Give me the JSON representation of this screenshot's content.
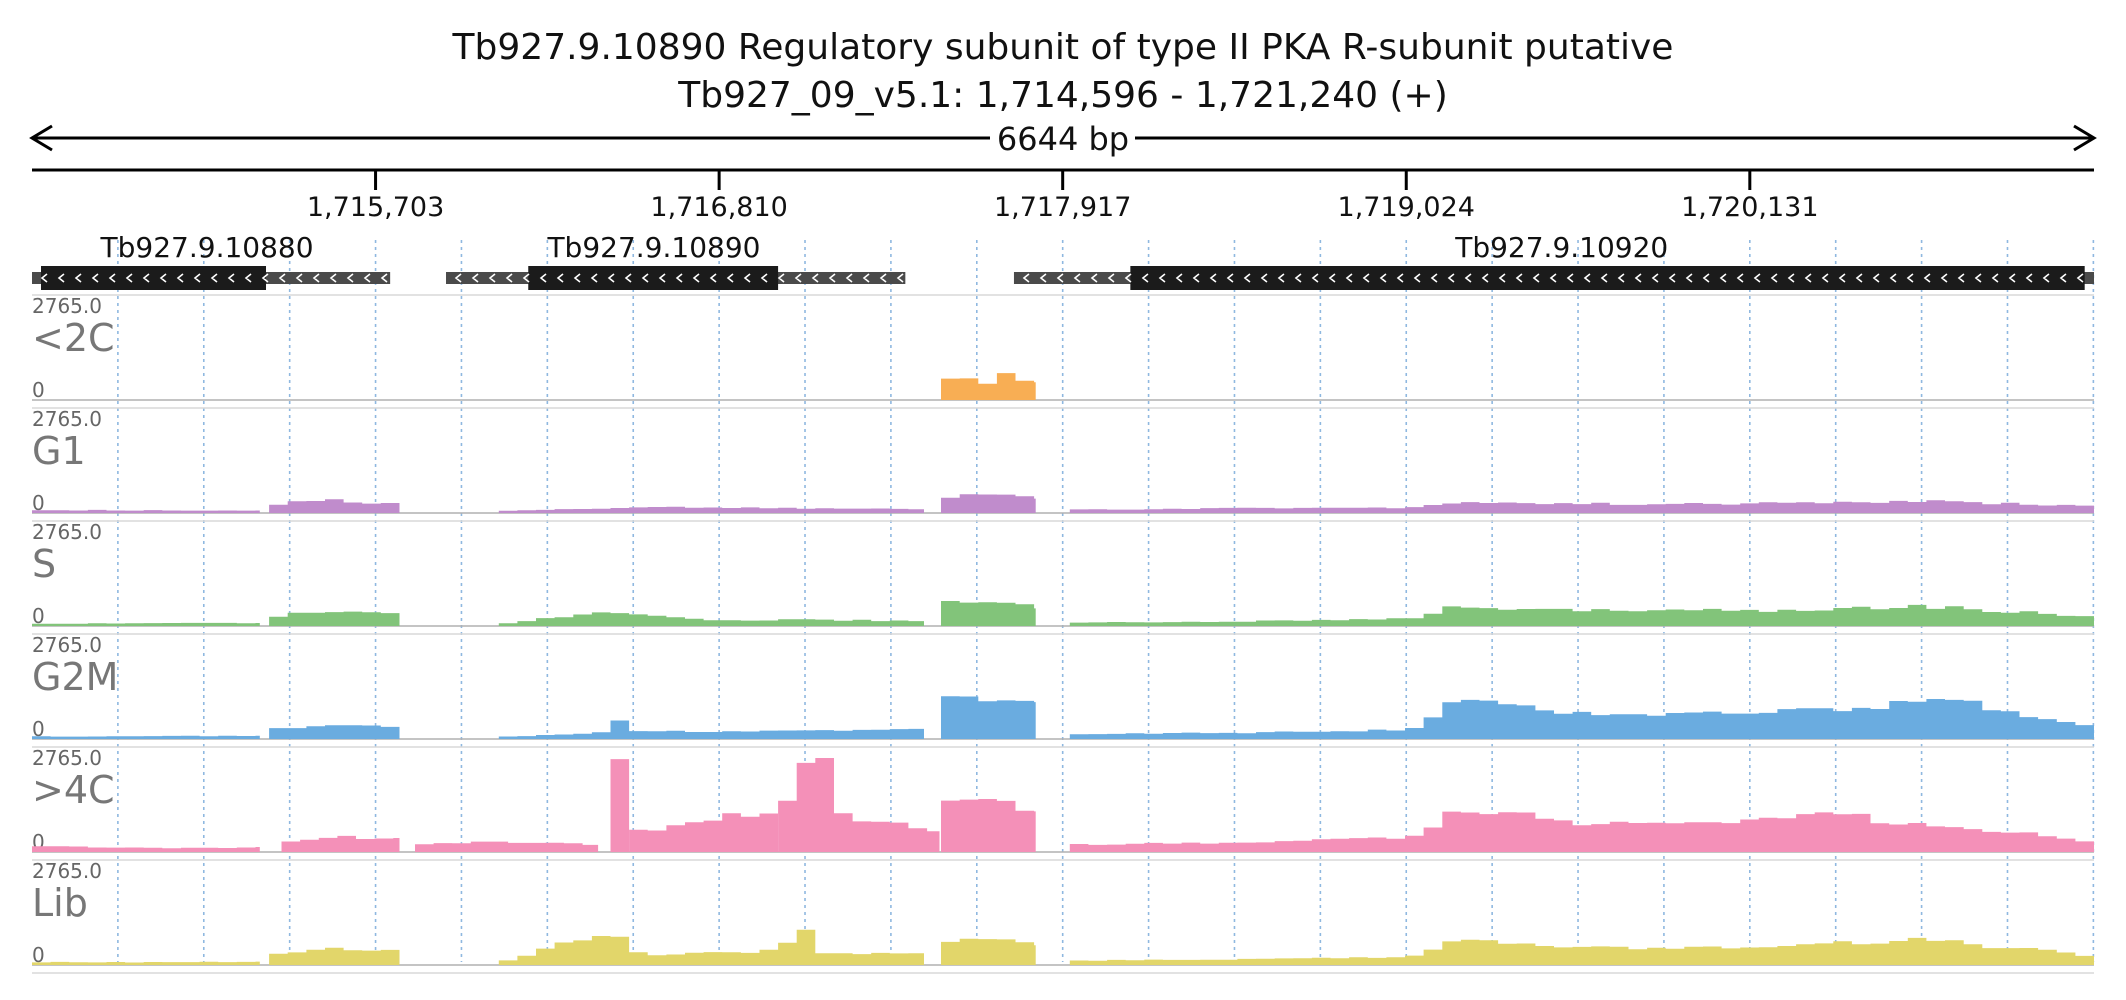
{
  "header": {
    "title": "Tb927.9.10890  Regulatory subunit of type II PKA R-subunit  putative",
    "location": "Tb927_09_v5.1: 1,714,596 - 1,721,240 (+)",
    "span_label": "6644 bp"
  },
  "chart_data": {
    "type": "area",
    "chromosome": "Tb927_09_v5.1",
    "strand": "+",
    "region": [
      1714596,
      1721240
    ],
    "span_bp": 6644,
    "ruler_ticks": [
      {
        "pos": 1715703,
        "label": "1,715,703"
      },
      {
        "pos": 1716810,
        "label": "1,716,810"
      },
      {
        "pos": 1717917,
        "label": "1,717,917"
      },
      {
        "pos": 1719024,
        "label": "1,719,024"
      },
      {
        "pos": 1720131,
        "label": "1,720,131"
      }
    ],
    "genes": [
      {
        "id": "Tb927.9.10880",
        "strand": "-",
        "start": 1714596,
        "end": 1715750,
        "cds_start": 1714625,
        "cds_end": 1715350,
        "label_pos": 1715160
      },
      {
        "id": "Tb927.9.10890",
        "strand": "-",
        "start": 1715930,
        "end": 1717410,
        "cds_start": 1716195,
        "cds_end": 1717000,
        "label_pos": 1716600
      },
      {
        "id": "Tb927.9.10920",
        "strand": "-",
        "start": 1717760,
        "end": 1721240,
        "cds_start": 1718135,
        "cds_end": 1721210,
        "label_pos": 1719525
      }
    ],
    "ylim": [
      0,
      2765.0
    ],
    "y_max_label": "2765.0",
    "y_min_label": "0",
    "bin_bp": 60,
    "series": [
      {
        "name": "<2C",
        "color": "#f8ae54",
        "segments": [
          {
            "start": 1717525,
            "end": 1717830,
            "profile": [
              [
                1717525,
                700
              ],
              [
                1717600,
                650
              ],
              [
                1717640,
                380
              ],
              [
                1717700,
                600
              ],
              [
                1717740,
                760
              ],
              [
                1717790,
                560
              ],
              [
                1717830,
                500
              ]
            ]
          }
        ]
      },
      {
        "name": "G1",
        "color": "#c08ccc",
        "segments": [
          {
            "start": 1714596,
            "end": 1715330,
            "profile": [
              [
                1714596,
                80
              ],
              [
                1715000,
                75
              ],
              [
                1715330,
                70
              ]
            ]
          },
          {
            "start": 1715360,
            "end": 1715780,
            "profile": [
              [
                1715360,
                220
              ],
              [
                1715550,
                400
              ],
              [
                1715650,
                280
              ],
              [
                1715780,
                310
              ]
            ]
          },
          {
            "start": 1716100,
            "end": 1717470,
            "profile": [
              [
                1716100,
                60
              ],
              [
                1716600,
                170
              ],
              [
                1716900,
                140
              ],
              [
                1717470,
                110
              ]
            ]
          },
          {
            "start": 1717525,
            "end": 1717830,
            "profile": [
              [
                1717525,
                420
              ],
              [
                1717650,
                500
              ],
              [
                1717700,
                560
              ],
              [
                1717830,
                380
              ]
            ]
          },
          {
            "start": 1717940,
            "end": 1721240,
            "profile": [
              [
                1717940,
                90
              ],
              [
                1718500,
                140
              ],
              [
                1719040,
                150
              ],
              [
                1719200,
                320
              ],
              [
                1719500,
                260
              ],
              [
                1720000,
                250
              ],
              [
                1720700,
                330
              ],
              [
                1721240,
                190
              ]
            ]
          }
        ]
      },
      {
        "name": "S",
        "color": "#82c47a",
        "segments": [
          {
            "start": 1714596,
            "end": 1715330,
            "profile": [
              [
                1714596,
                70
              ],
              [
                1715000,
                75
              ],
              [
                1715330,
                90
              ]
            ]
          },
          {
            "start": 1715360,
            "end": 1715780,
            "profile": [
              [
                1715360,
                250
              ],
              [
                1715550,
                420
              ],
              [
                1715780,
                330
              ]
            ]
          },
          {
            "start": 1716100,
            "end": 1717470,
            "profile": [
              [
                1716100,
                60
              ],
              [
                1716460,
                400
              ],
              [
                1716800,
                150
              ],
              [
                1717100,
                180
              ],
              [
                1717470,
                140
              ]
            ]
          },
          {
            "start": 1717525,
            "end": 1717830,
            "profile": [
              [
                1717525,
                620
              ],
              [
                1717650,
                650
              ],
              [
                1717740,
                700
              ],
              [
                1717830,
                460
              ]
            ]
          },
          {
            "start": 1717940,
            "end": 1721240,
            "profile": [
              [
                1717940,
                90
              ],
              [
                1718500,
                130
              ],
              [
                1719040,
                200
              ],
              [
                1719200,
                560
              ],
              [
                1719600,
                430
              ],
              [
                1720200,
                440
              ],
              [
                1720700,
                560
              ],
              [
                1721240,
                250
              ]
            ]
          }
        ]
      },
      {
        "name": "G2M",
        "color": "#6aace0",
        "segments": [
          {
            "start": 1714596,
            "end": 1715330,
            "profile": [
              [
                1714596,
                70
              ],
              [
                1715000,
                80
              ],
              [
                1715330,
                90
              ]
            ]
          },
          {
            "start": 1715360,
            "end": 1715780,
            "profile": [
              [
                1715360,
                250
              ],
              [
                1715580,
                420
              ],
              [
                1715780,
                300
              ]
            ]
          },
          {
            "start": 1716100,
            "end": 1717470,
            "profile": [
              [
                1716100,
                60
              ],
              [
                1716450,
                180
              ],
              [
                1716460,
                700
              ],
              [
                1716560,
                200
              ],
              [
                1717000,
                230
              ],
              [
                1717470,
                260
              ]
            ]
          },
          {
            "start": 1717525,
            "end": 1717830,
            "profile": [
              [
                1717525,
                1100
              ],
              [
                1717640,
                1200
              ],
              [
                1717740,
                1150
              ],
              [
                1717830,
                950
              ]
            ]
          },
          {
            "start": 1717940,
            "end": 1721240,
            "profile": [
              [
                1717940,
                120
              ],
              [
                1718500,
                180
              ],
              [
                1719040,
                260
              ],
              [
                1719200,
                1100
              ],
              [
                1719600,
                700
              ],
              [
                1720200,
                760
              ],
              [
                1720800,
                1050
              ],
              [
                1721240,
                300
              ]
            ]
          }
        ]
      },
      {
        "name": ">4C",
        "color": "#f490b8",
        "segments": [
          {
            "start": 1714596,
            "end": 1715330,
            "profile": [
              [
                1714596,
                160
              ],
              [
                1715000,
                120
              ],
              [
                1715330,
                130
              ]
            ]
          },
          {
            "start": 1715400,
            "end": 1715780,
            "profile": [
              [
                1715400,
                300
              ],
              [
                1715560,
                440
              ],
              [
                1715780,
                380
              ]
            ]
          },
          {
            "start": 1715830,
            "end": 1716420,
            "profile": [
              [
                1715830,
                200
              ],
              [
                1716100,
                280
              ],
              [
                1716420,
                220
              ]
            ]
          },
          {
            "start": 1716460,
            "end": 1716520,
            "profile": [
              [
                1716460,
                2700
              ],
              [
                1716520,
                2700
              ]
            ]
          },
          {
            "start": 1716520,
            "end": 1717000,
            "profile": [
              [
                1716520,
                550
              ],
              [
                1716800,
                900
              ],
              [
                1716960,
                1150
              ],
              [
                1717000,
                1000
              ]
            ]
          },
          {
            "start": 1717000,
            "end": 1717520,
            "profile": [
              [
                1717000,
                900
              ],
              [
                1717080,
                2650
              ],
              [
                1717150,
                2700
              ],
              [
                1717200,
                1000
              ],
              [
                1717520,
                600
              ]
            ]
          },
          {
            "start": 1717525,
            "end": 1717830,
            "profile": [
              [
                1717525,
                1400
              ],
              [
                1717600,
                1600
              ],
              [
                1717700,
                1500
              ],
              [
                1717830,
                1100
              ]
            ]
          },
          {
            "start": 1717940,
            "end": 1721240,
            "profile": [
              [
                1717940,
                200
              ],
              [
                1718500,
                280
              ],
              [
                1719040,
                400
              ],
              [
                1719200,
                1200
              ],
              [
                1719600,
                800
              ],
              [
                1720000,
                850
              ],
              [
                1720300,
                1100
              ],
              [
                1720700,
                800
              ],
              [
                1721240,
                300
              ]
            ]
          }
        ]
      },
      {
        "name": "Lib",
        "color": "#e2d66a",
        "segments": [
          {
            "start": 1714596,
            "end": 1715330,
            "profile": [
              [
                1714596,
                80
              ],
              [
                1715000,
                80
              ],
              [
                1715330,
                90
              ]
            ]
          },
          {
            "start": 1715360,
            "end": 1715780,
            "profile": [
              [
                1715360,
                330
              ],
              [
                1715550,
                460
              ],
              [
                1715780,
                380
              ]
            ]
          },
          {
            "start": 1716100,
            "end": 1717470,
            "profile": [
              [
                1716100,
                60
              ],
              [
                1716460,
                950
              ],
              [
                1716560,
                250
              ],
              [
                1717000,
                400
              ],
              [
                1717080,
                1150
              ],
              [
                1717150,
                350
              ],
              [
                1717470,
                330
              ]
            ]
          },
          {
            "start": 1717525,
            "end": 1717830,
            "profile": [
              [
                1717525,
                700
              ],
              [
                1717650,
                760
              ],
              [
                1717740,
                720
              ],
              [
                1717830,
                560
              ]
            ]
          },
          {
            "start": 1717940,
            "end": 1721240,
            "profile": [
              [
                1717940,
                120
              ],
              [
                1718500,
                160
              ],
              [
                1719040,
                230
              ],
              [
                1719200,
                700
              ],
              [
                1719600,
                480
              ],
              [
                1720200,
                500
              ],
              [
                1720700,
                700
              ],
              [
                1721240,
                260
              ]
            ]
          }
        ]
      }
    ]
  }
}
